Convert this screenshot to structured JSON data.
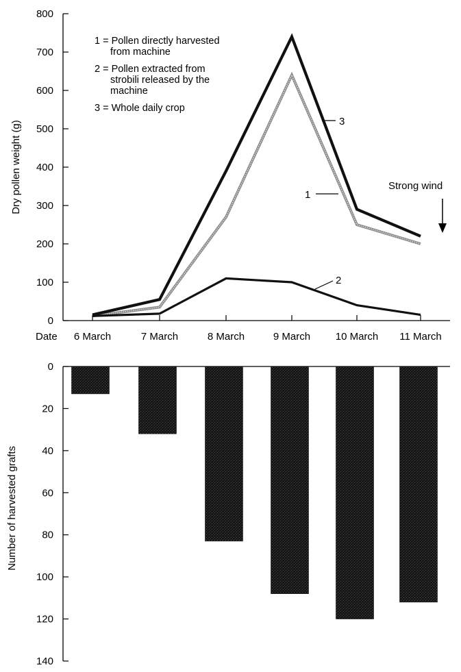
{
  "chart_data": [
    {
      "type": "line",
      "ylabel": "Dry pollen weight  (g)",
      "xaxis_prefix": "Date",
      "categories": [
        "6 March",
        "7 March",
        "8 March",
        "9 March",
        "10 March",
        "11 March"
      ],
      "ylim": [
        0,
        800
      ],
      "yticks": [
        0,
        100,
        200,
        300,
        400,
        500,
        600,
        700,
        800
      ],
      "legend": [
        {
          "key": "1",
          "lines": [
            "1 = Pollen directly harvested",
            "from machine"
          ]
        },
        {
          "key": "2",
          "lines": [
            "2 = Pollen extracted from",
            "strobili released by the",
            "machine"
          ]
        },
        {
          "key": "3",
          "lines": [
            "3 = Whole daily crop"
          ]
        }
      ],
      "legend_position": "top-left",
      "series": [
        {
          "name": "1",
          "color": "#9a9a9a",
          "values": [
            12,
            35,
            270,
            640,
            250,
            200
          ]
        },
        {
          "name": "2",
          "color": "#111111",
          "values": [
            12,
            18,
            110,
            100,
            40,
            15
          ]
        },
        {
          "name": "3",
          "color": "#111111",
          "values": [
            15,
            55,
            390,
            740,
            290,
            220
          ]
        }
      ],
      "annotation": "Strong wind"
    },
    {
      "type": "bar",
      "ylabel": "Number of harvested grafts",
      "categories": [
        "6 March",
        "7 March",
        "8 March",
        "9 March",
        "10 March",
        "11 March"
      ],
      "values": [
        13,
        32,
        83,
        108,
        120,
        112
      ],
      "ylim": [
        0,
        140
      ],
      "yticks": [
        0,
        20,
        40,
        60,
        80,
        100,
        120,
        140
      ],
      "inverted": true,
      "color": "#1c1c1c"
    }
  ]
}
